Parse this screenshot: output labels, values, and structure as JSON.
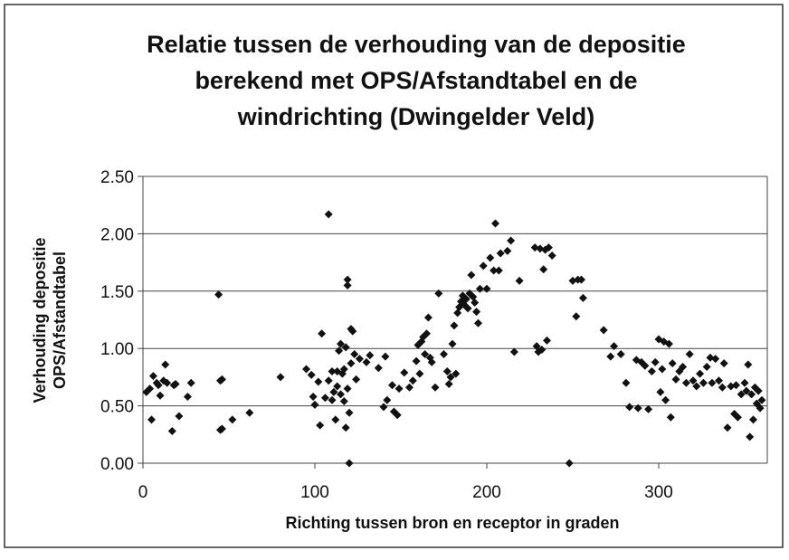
{
  "chart_data": {
    "type": "scatter",
    "title_lines": [
      "Relatie tussen de verhouding van de depositie",
      "berekend met OPS/Afstandtabel en de",
      "windrichting (Dwingelder Veld)"
    ],
    "xlabel": "Richting tussen bron en receptor in graden",
    "ylabel_lines": [
      "Verhouding depositie",
      "OPS/Afstandtabel"
    ],
    "xlim": [
      0,
      360
    ],
    "ylim": [
      0,
      2.5
    ],
    "xticks": [
      0,
      100,
      200,
      300
    ],
    "yticks": [
      {
        "value": 0,
        "label": "0.00"
      },
      {
        "value": 0.5,
        "label": "0.50"
      },
      {
        "value": 1,
        "label": "1.00"
      },
      {
        "value": 1.5,
        "label": "1.50"
      },
      {
        "value": 2,
        "label": "2.00"
      },
      {
        "value": 2.5,
        "label": "2.50"
      }
    ],
    "grid": true,
    "color": "#111111",
    "x": [
      2,
      4,
      5,
      6,
      8,
      9,
      10,
      12,
      13,
      14,
      17,
      18,
      19,
      21,
      26,
      28,
      44,
      45,
      45,
      46,
      46,
      52,
      62,
      80,
      95,
      98,
      99,
      100,
      102,
      103,
      104,
      106,
      108,
      108,
      110,
      110,
      111,
      112,
      113,
      113,
      114,
      115,
      115,
      116,
      117,
      117,
      118,
      118,
      119,
      119,
      119,
      120,
      120,
      121,
      121,
      122,
      123,
      124,
      126,
      130,
      132,
      137,
      140,
      141,
      142,
      145,
      146,
      148,
      149,
      152,
      155,
      157,
      159,
      160,
      161,
      162,
      163,
      164,
      165,
      166,
      167,
      168,
      170,
      172,
      175,
      177,
      178,
      179,
      180,
      181,
      182,
      183,
      184,
      185,
      186,
      187,
      188,
      189,
      190,
      191,
      192,
      193,
      194,
      195,
      196,
      198,
      200,
      202,
      204,
      205,
      207,
      208,
      212,
      214,
      216,
      219,
      228,
      229,
      230,
      231,
      232,
      233,
      234,
      235,
      236,
      238,
      248,
      250,
      252,
      253,
      255,
      256,
      268,
      272,
      274,
      278,
      281,
      283,
      287,
      288,
      290,
      292,
      294,
      296,
      298,
      300,
      301,
      302,
      303,
      304,
      306,
      307,
      308,
      310,
      312,
      314,
      316,
      318,
      320,
      322,
      324,
      326,
      328,
      330,
      331,
      333,
      335,
      337,
      338,
      340,
      342,
      344,
      345,
      346,
      348,
      350,
      351,
      352,
      353,
      354,
      355,
      356,
      357,
      358,
      359,
      360
    ],
    "values": [
      0.62,
      0.65,
      0.38,
      0.76,
      0.7,
      0.68,
      0.59,
      0.72,
      0.86,
      0.7,
      0.28,
      0.68,
      0.69,
      0.41,
      0.58,
      0.7,
      1.47,
      0.29,
      0.72,
      0.3,
      0.73,
      0.38,
      0.44,
      0.75,
      0.82,
      0.77,
      0.58,
      0.51,
      0.71,
      0.33,
      1.13,
      0.57,
      2.17,
      0.72,
      0.8,
      0.55,
      0.62,
      0.38,
      0.8,
      0.67,
      0.98,
      0.6,
      1.04,
      0.78,
      0.54,
      0.82,
      0.31,
      1.01,
      0.65,
      1.6,
      1.55,
      0.0,
      0.44,
      0.87,
      1.17,
      1.15,
      0.95,
      0.73,
      0.91,
      0.88,
      0.94,
      0.83,
      0.49,
      0.93,
      0.55,
      0.68,
      0.45,
      0.42,
      0.65,
      0.79,
      0.66,
      0.72,
      0.89,
      1.03,
      0.78,
      1.06,
      1.1,
      0.95,
      1.13,
      1.27,
      0.92,
      0.88,
      0.66,
      1.48,
      0.95,
      0.8,
      0.69,
      0.75,
      1.04,
      1.2,
      0.78,
      1.31,
      1.36,
      1.41,
      1.46,
      1.38,
      1.43,
      1.35,
      1.48,
      1.64,
      1.45,
      1.4,
      1.32,
      1.22,
      1.52,
      1.72,
      1.52,
      1.79,
      1.68,
      2.09,
      1.68,
      1.83,
      1.85,
      1.94,
      0.97,
      1.59,
      1.88,
      1.02,
      0.97,
      1.87,
      0.99,
      1.69,
      1.86,
      1.07,
      1.88,
      1.81,
      0.0,
      1.59,
      1.28,
      1.6,
      1.6,
      1.44,
      1.16,
      0.93,
      1.02,
      0.95,
      0.7,
      0.49,
      0.9,
      0.48,
      0.88,
      0.85,
      0.47,
      0.8,
      0.88,
      1.08,
      0.62,
      0.82,
      1.06,
      0.55,
      1.04,
      0.4,
      0.87,
      0.73,
      0.8,
      0.84,
      0.7,
      0.95,
      0.72,
      0.67,
      0.78,
      0.7,
      0.84,
      0.92,
      0.7,
      0.91,
      0.72,
      0.66,
      0.87,
      0.31,
      0.67,
      0.43,
      0.68,
      0.4,
      0.6,
      0.7,
      0.63,
      0.86,
      0.23,
      0.6,
      0.38,
      0.66,
      0.52,
      0.63,
      0.48,
      0.55
    ]
  }
}
